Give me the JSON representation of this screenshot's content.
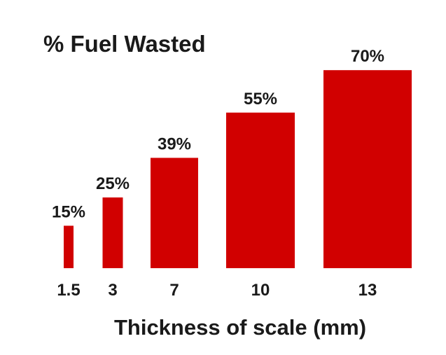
{
  "chart_data": {
    "type": "bar",
    "title": "% Fuel Wasted",
    "xlabel": "Thickness of scale (mm)",
    "ylabel": "",
    "categories": [
      "1.5",
      "3",
      "7",
      "10",
      "13"
    ],
    "values": [
      15,
      25,
      39,
      55,
      70
    ],
    "value_labels": [
      "15%",
      "25%",
      "39%",
      "55%",
      "70%"
    ],
    "ylim": [
      0,
      70
    ],
    "grid": false,
    "legend": "none",
    "bar_color": "#d10000",
    "text_color": "#1a1a1a"
  }
}
